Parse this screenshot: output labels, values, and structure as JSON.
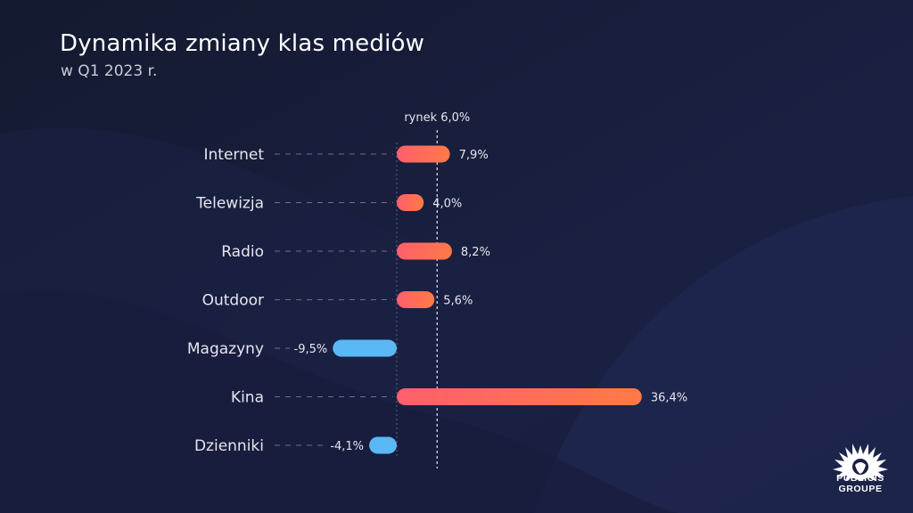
{
  "header": {
    "title": "Dynamika zmiany klas mediów",
    "subtitle": "w Q1 2023 r."
  },
  "logo": {
    "line1": "PUBLICIS",
    "line2": "GROUPE"
  },
  "chart_data": {
    "type": "bar",
    "orientation": "horizontal",
    "categories": [
      "Internet",
      "Telewizja",
      "Radio",
      "Outdoor",
      "Magazyny",
      "Kina",
      "Dzienniki"
    ],
    "values": [
      7.9,
      4.0,
      8.2,
      5.6,
      -9.5,
      36.4,
      -4.1
    ],
    "value_labels": [
      "7,9%",
      "4,0%",
      "8,2%",
      "5,6%",
      "-9,5%",
      "36,4%",
      "-4,1%"
    ],
    "reference": {
      "label": "rynek 6,0%",
      "value": 6.0
    },
    "colors": {
      "positive_start": "#ff5f6d",
      "positive_end": "#ff7a45",
      "negative": "#5ab8f5",
      "label": "#e6e6ee",
      "guide": "#6a7088"
    },
    "grid": false,
    "legend": "none"
  }
}
